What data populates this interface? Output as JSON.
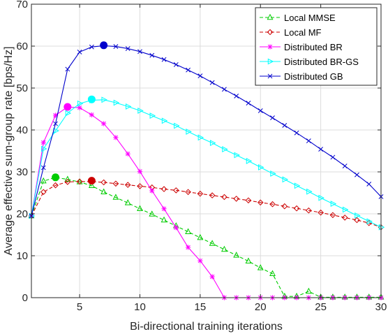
{
  "chart_data": {
    "type": "line",
    "xlabel": "Bi-directional training iterations",
    "ylabel": "Average effective sum-group rate [bps/Hz]",
    "xlim": [
      1,
      30
    ],
    "ylim": [
      0,
      70
    ],
    "x_ticks": [
      5,
      10,
      15,
      20,
      25,
      30
    ],
    "y_ticks": [
      0,
      10,
      20,
      30,
      40,
      50,
      60,
      70
    ],
    "grid": true,
    "legend_position": "top-right",
    "x": [
      1,
      2,
      3,
      4,
      5,
      6,
      7,
      8,
      9,
      10,
      11,
      12,
      13,
      14,
      15,
      16,
      17,
      18,
      19,
      20,
      21,
      22,
      23,
      24,
      25,
      26,
      27,
      28,
      29,
      30
    ],
    "series": [
      {
        "name": "Local MMSE",
        "color": "#00cc00",
        "line_style": "dashed",
        "marker": "triangle-up",
        "values": [
          19.5,
          27.8,
          28.7,
          28.2,
          27.6,
          26.7,
          25.2,
          23.9,
          22.6,
          21.2,
          19.9,
          18.5,
          17.1,
          15.7,
          14.3,
          12.9,
          11.5,
          10.1,
          8.7,
          7.1,
          5.7,
          0.3,
          0.3,
          1.5,
          0.1,
          0.1,
          0.1,
          0.1,
          0.1,
          0.1
        ],
        "highlight": {
          "x": 3,
          "y": 28.7
        }
      },
      {
        "name": "Local MF",
        "color": "#cc0000",
        "line_style": "dashed",
        "marker": "diamond",
        "values": [
          19.5,
          25.2,
          26.8,
          27.6,
          27.7,
          27.7,
          27.5,
          27.2,
          26.9,
          26.6,
          26.3,
          25.9,
          25.6,
          25.2,
          24.8,
          24.4,
          24.0,
          23.6,
          23.2,
          22.7,
          22.3,
          21.8,
          21.3,
          20.8,
          20.3,
          19.7,
          19.1,
          18.5,
          17.8,
          16.8
        ],
        "highlight": {
          "x": 6,
          "y": 27.9
        }
      },
      {
        "name": "Distributed BR",
        "color": "#ff00ff",
        "line_style": "solid",
        "marker": "star",
        "values": [
          19.5,
          37.0,
          43.5,
          45.5,
          45.3,
          43.6,
          41.5,
          38.2,
          34.3,
          30.1,
          25.5,
          21.2,
          16.7,
          12.0,
          8.8,
          5.0,
          0.0,
          0.0,
          0.0,
          0.0,
          0.0,
          0.0,
          0.0,
          0.0,
          0.0,
          0.0,
          0.0,
          0.0,
          0.0,
          0.0
        ],
        "highlight": {
          "x": 4,
          "y": 45.5
        }
      },
      {
        "name": "Distributed BR-GS",
        "color": "#00ffff",
        "line_style": "solid",
        "marker": "triangle-right",
        "values": [
          19.5,
          35.5,
          39.8,
          44.0,
          46.3,
          47.1,
          47.2,
          46.5,
          45.6,
          44.6,
          43.4,
          42.2,
          41.0,
          39.6,
          38.2,
          36.9,
          35.4,
          34.0,
          32.6,
          31.1,
          29.6,
          28.2,
          26.7,
          25.3,
          23.8,
          22.4,
          21.0,
          19.6,
          18.2,
          16.8
        ],
        "highlight": {
          "x": 6,
          "y": 47.3
        }
      },
      {
        "name": "Distributed GB",
        "color": "#0000cc",
        "line_style": "solid",
        "marker": "x",
        "values": [
          19.5,
          31.0,
          41.5,
          54.5,
          58.6,
          59.8,
          60.1,
          59.9,
          59.4,
          58.7,
          57.8,
          56.8,
          55.6,
          54.3,
          52.9,
          51.3,
          49.7,
          48.1,
          46.4,
          44.6,
          42.9,
          41.1,
          39.3,
          37.4,
          35.4,
          33.5,
          31.4,
          29.3,
          27.1,
          24.1
        ],
        "highlight": {
          "x": 7,
          "y": 60.2
        }
      }
    ]
  }
}
